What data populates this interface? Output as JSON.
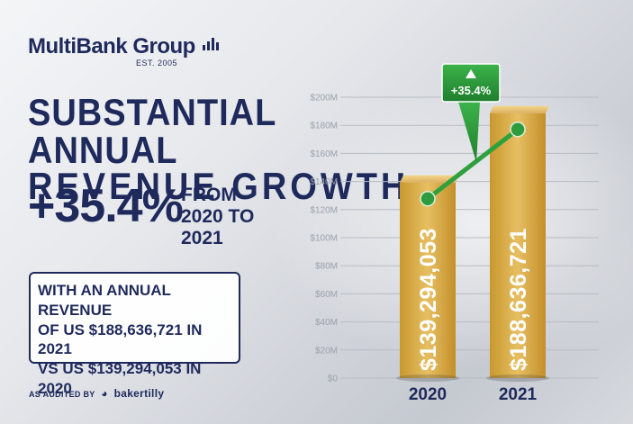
{
  "brand": {
    "name": "MultiBank Group",
    "est": "EST. 2005"
  },
  "headline": {
    "line1": "SUBSTANTIAL ANNUAL",
    "line2": "REVENUE GROWTH",
    "growth_pct": "+35.4%",
    "growth_sub": "FROM 2020 TO 2021"
  },
  "infobox": {
    "line1": "WITH AN ANNUAL REVENUE",
    "line2": "OF US $188,636,721 IN 2021",
    "line3": "VS US $139,294,053 IN 2020"
  },
  "audit": {
    "label": "AS AUDITED BY",
    "auditor": "bakertilly"
  },
  "colors": {
    "navy": "#1f2a5c",
    "bar_gold": "#d4a94a",
    "line_green": "#2e9c3e"
  },
  "chart_data": {
    "type": "bar",
    "categories": [
      "2020",
      "2021"
    ],
    "values": [
      139294053,
      188636721
    ],
    "value_labels": [
      "$139,294,053",
      "$188,636,721"
    ],
    "ylim": [
      0,
      200000000
    ],
    "y_ticks": [
      "$0",
      "$20M",
      "$40M",
      "$60M",
      "$80M",
      "$100M",
      "$120M",
      "$140M",
      "$160M",
      "$180M",
      "$200M"
    ],
    "overlay_line": true,
    "callout": "+35.4%",
    "grid": true
  }
}
